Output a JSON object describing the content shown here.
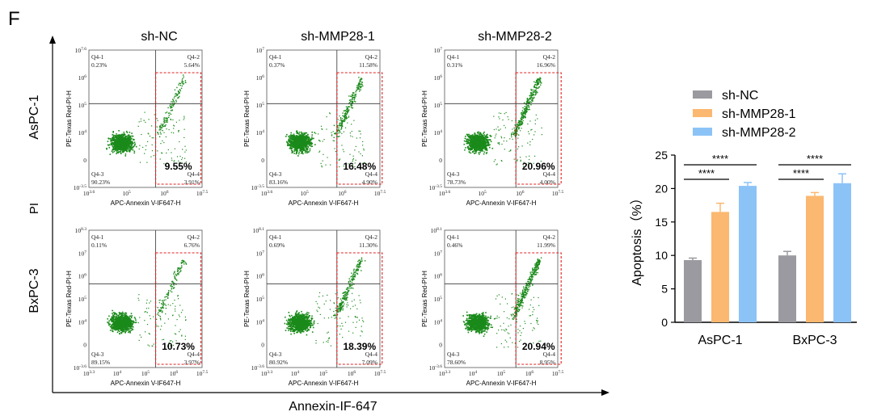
{
  "figure": {
    "panel_letter": "F",
    "columns": [
      "sh-NC",
      "sh-MMP28-1",
      "sh-MMP28-2"
    ],
    "rows": [
      "AsPC-1",
      "BxPC-3"
    ],
    "row_axis_label": "PI",
    "col_axis_label": "Annexin-IF-647"
  },
  "flow": {
    "x_axis_label": "APC-Annexin V-IF647-H",
    "y_axis_label": "PE-Texas Red-PI-H",
    "dot_color": "#1a8a1a",
    "gate_color": "#e02020",
    "quadrant_names": [
      "Q4-1",
      "Q4-2",
      "Q4-3",
      "Q4-4"
    ],
    "rows": [
      {
        "name": "AsPC-1",
        "x_ticks": [
          "10^3.6",
          "10^5",
          "10^6",
          "10^7.5"
        ],
        "panels": [
          {
            "y_ticks": [
              "10^-3.5",
              "0",
              "10^4",
              "10^5",
              "10^6",
              "10^7.6"
            ],
            "q1": "0.23%",
            "q2": "5.64%",
            "q3": "90.23%",
            "q4": "3.91%",
            "gate": "9.55%"
          },
          {
            "y_ticks": [
              "10^-3.5",
              "0",
              "10^4",
              "10^5",
              "10^6",
              "10^7"
            ],
            "q1": "0.37%",
            "q2": "11.58%",
            "q3": "83.16%",
            "q4": "4.90%",
            "gate": "16.48%"
          },
          {
            "y_ticks": [
              "10^-3.5",
              "0",
              "10^4",
              "10^5",
              "10^6",
              "10^7"
            ],
            "q1": "0.31%",
            "q2": "16.96%",
            "q3": "78.73%",
            "q4": "4.00%",
            "gate": "20.96%"
          }
        ]
      },
      {
        "name": "BxPC-3",
        "x_ticks": [
          "10^3.3",
          "10^4",
          "10^5",
          "10^6",
          "10^7.5"
        ],
        "panels": [
          {
            "y_ticks": [
              "10^-3.6",
              "0",
              "10^4",
              "10^5",
              "10^6",
              "10^7",
              "10^8.3"
            ],
            "q1": "0.11%",
            "q2": "6.76%",
            "q3": "89.15%",
            "q4": "3.97%",
            "gate": "10.73%"
          },
          {
            "y_ticks": [
              "10^-3.6",
              "0",
              "10^4",
              "10^5",
              "10^6",
              "10^7",
              "10^8.1"
            ],
            "q1": "0.69%",
            "q2": "11.30%",
            "q3": "80.92%",
            "q4": "7.09%",
            "gate": "18.39%"
          },
          {
            "y_ticks": [
              "10^-3.6",
              "0",
              "10^4",
              "10^5",
              "10^6",
              "10^7",
              "10^8.1"
            ],
            "q1": "0.46%",
            "q2": "11.99%",
            "q3": "78.60%",
            "q4": "8.95%",
            "gate": "20.94%"
          }
        ]
      }
    ]
  },
  "chart_data": {
    "type": "bar",
    "title": "",
    "xlabel": "",
    "ylabel": "Apoptosis（%）",
    "ylim": [
      0,
      25
    ],
    "yticks": [
      0,
      5,
      10,
      15,
      20,
      25
    ],
    "categories": [
      "AsPC-1",
      "BxPC-3"
    ],
    "legend_position": "top-right",
    "series": [
      {
        "name": "sh-NC",
        "color": "#9a9aa0",
        "values": [
          9.3,
          10.0
        ],
        "errors": [
          0.3,
          0.6
        ]
      },
      {
        "name": "sh-MMP28-1",
        "color": "#fbb870",
        "values": [
          16.5,
          18.9
        ],
        "errors": [
          1.3,
          0.5
        ]
      },
      {
        "name": "sh-MMP28-2",
        "color": "#8cc3f7",
        "values": [
          20.4,
          20.8
        ],
        "errors": [
          0.5,
          1.4
        ]
      }
    ],
    "significance": [
      {
        "group": "AsPC-1",
        "from": "sh-NC",
        "to": "sh-MMP28-1",
        "label": "****"
      },
      {
        "group": "AsPC-1",
        "from": "sh-NC",
        "to": "sh-MMP28-2",
        "label": "****"
      },
      {
        "group": "BxPC-3",
        "from": "sh-NC",
        "to": "sh-MMP28-1",
        "label": "****"
      },
      {
        "group": "BxPC-3",
        "from": "sh-NC",
        "to": "sh-MMP28-2",
        "label": "****"
      }
    ]
  }
}
